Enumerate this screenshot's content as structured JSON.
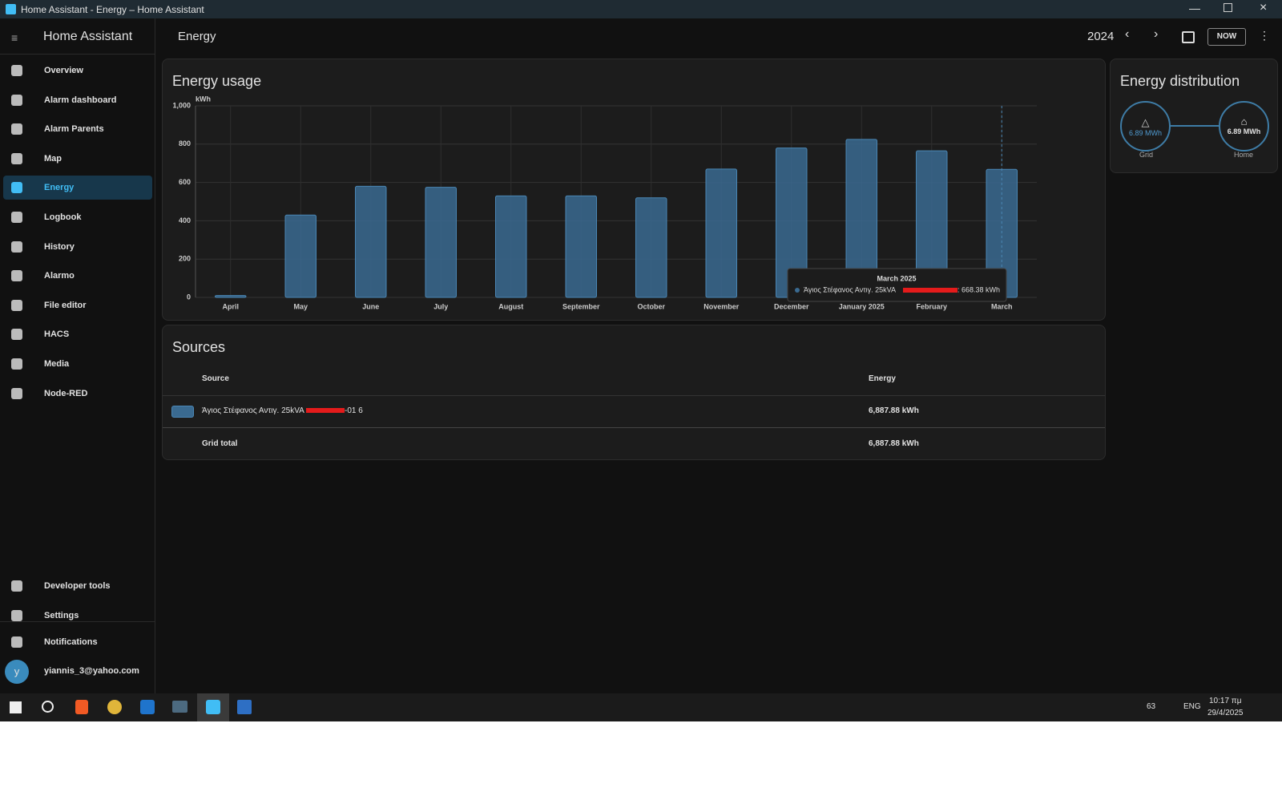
{
  "window": {
    "title": "Home Assistant - Energy – Home Assistant"
  },
  "sidebar": {
    "title": "Home Assistant",
    "items": [
      "Overview",
      "Alarm dashboard",
      "Alarm Parents",
      "Map",
      "Energy",
      "Logbook",
      "History",
      "Alarmo",
      "File editor",
      "HACS",
      "Media",
      "Node-RED"
    ],
    "bottom_items": [
      "Developer tools",
      "Settings"
    ],
    "notifications": "Notifications",
    "user_initial": "y",
    "user": "yiannis_3@yahoo.com"
  },
  "header": {
    "title": "Energy",
    "period": "2024",
    "now_button": "NOW"
  },
  "chart_data": {
    "type": "bar",
    "title": "Energy usage",
    "y_unit": "kWh",
    "categories": [
      "April",
      "May",
      "June",
      "July",
      "August",
      "September",
      "October",
      "November",
      "December",
      "January 2025",
      "February",
      "March"
    ],
    "values": [
      10,
      430,
      580,
      575,
      530,
      530,
      520,
      670,
      780,
      825,
      765,
      668.38
    ],
    "color": "#3a6a90",
    "ylim": [
      0,
      1000
    ],
    "yticks": [
      0,
      200,
      400,
      600,
      800,
      {
        "value": 1000,
        "label": "1,000"
      }
    ],
    "grid": true,
    "tooltip": {
      "title": "March 2025",
      "series": "Άγιος Στέφανος Αντιγ. 25kVA",
      "value_label": ": 668.38 kWh"
    }
  },
  "distribution": {
    "title": "Energy distribution",
    "grid_value": "6.89 MWh",
    "grid_label": "Grid",
    "home_value": "6.89 MWh",
    "home_label": "Home"
  },
  "sources": {
    "title": "Sources",
    "columns": [
      "Source",
      "Energy"
    ],
    "rows": [
      [
        "Άγιος Στέφανος Αντιγ. 25kVA",
        "-01 6",
        "6,887.88 kWh"
      ]
    ],
    "total": [
      "Grid total",
      "6,887.88 kWh"
    ]
  },
  "taskbar": {
    "language": "ENG",
    "battery": "63",
    "time": "10:17 πμ",
    "date": "29/4/2025"
  }
}
